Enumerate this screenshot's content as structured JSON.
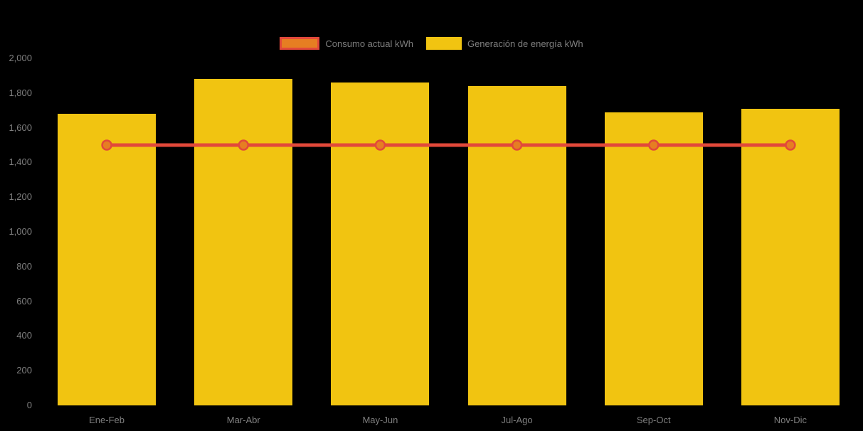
{
  "page": {
    "background_color": "#000000",
    "axis_text_color": "#7f7f7f"
  },
  "legend": {
    "items": [
      {
        "id": "consumo",
        "label": "Consumo actual kWh",
        "swatch_type": "line",
        "fill": "#e67e22",
        "border": "#e2493a"
      },
      {
        "id": "generacion",
        "label": "Generación de energía kWh",
        "swatch_type": "bar",
        "fill": "#f1c411",
        "border": "#f1c411"
      }
    ]
  },
  "chart_data": {
    "type": "bar",
    "subtype": "bar-line-combo",
    "title": "",
    "xlabel": "",
    "ylabel": "",
    "categories": [
      "Ene-Feb",
      "Mar-Abr",
      "May-Jun",
      "Jul-Ago",
      "Sep-Oct",
      "Nov-Dic"
    ],
    "series": [
      {
        "name": "Generación de energía kWh",
        "type": "bar",
        "color": "#f1c411",
        "values": [
          1680,
          1880,
          1860,
          1840,
          1690,
          1710
        ]
      },
      {
        "name": "Consumo actual kWh",
        "type": "line",
        "color": "#e2493a",
        "marker_fill": "#e67e22",
        "values": [
          1500,
          1500,
          1500,
          1500,
          1500,
          1500
        ]
      }
    ],
    "ylim": [
      0,
      2000
    ],
    "ytick_interval": 200,
    "ytick_labels": [
      "0",
      "200",
      "400",
      "600",
      "800",
      "1,000",
      "1,200",
      "1,400",
      "1,600",
      "1,800",
      "2,000"
    ],
    "grid": false,
    "legend_position": "top"
  }
}
